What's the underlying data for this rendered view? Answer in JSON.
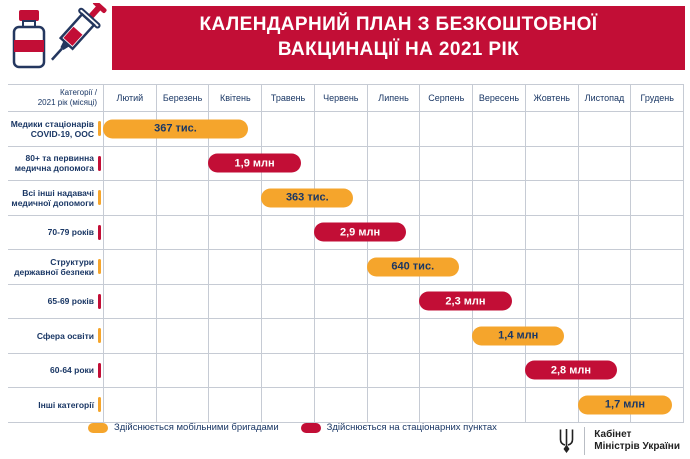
{
  "header": {
    "title_line1": "КАЛЕНДАРНИЙ ПЛАН З БЕЗКОШТОВНОЇ",
    "title_line2": "ВАКЦИНАЦІЇ НА 2021 РІК"
  },
  "table": {
    "corner_line1": "Категорії /",
    "corner_line2": "2021 рік (місяці)"
  },
  "legend": [
    {
      "label": "Здійснюється мобільними бригадами",
      "type": "mobile",
      "color": "#F5A52C"
    },
    {
      "label": "Здійснюється на стаціонарних пунктах",
      "type": "stationary",
      "color": "#C20E36"
    }
  ],
  "footer": {
    "org_line1": "Кабінет",
    "org_line2": "Міністрів України"
  },
  "colors": {
    "banner_red": "#C20E36",
    "bar_orange": "#F5A52C",
    "text_navy": "#1A3765",
    "grid_line": "#C6CBD4"
  },
  "chart_data": {
    "type": "bar",
    "subtype": "horizontal-gantt-timeline",
    "title": "КАЛЕНДАРНИЙ ПЛАН З БЕЗКОШТОВНОЇ ВАКЦИНАЦІЇ НА 2021 РІК",
    "x_categories_months": [
      "Лютий",
      "Березень",
      "Квітень",
      "Травень",
      "Червень",
      "Липень",
      "Серпень",
      "Вересень",
      "Жовтень",
      "Листопад",
      "Грудень"
    ],
    "legend_position": "bottom",
    "grid": true,
    "rows": [
      {
        "category": "Медики стаціонарів COVID-19, ООС",
        "value_label": "367 тис.",
        "type": "mobile",
        "start_month": "Лютий",
        "end_month": "Квітень",
        "start": 0,
        "span": 2.75
      },
      {
        "category": "80+ та первинна медична допомога",
        "value_label": "1,9 млн",
        "type": "stationary",
        "start_month": "Квітень",
        "end_month": "Травень",
        "start": 2,
        "span": 1.75
      },
      {
        "category": "Всі інші надавачі медичної допомоги",
        "value_label": "363 тис.",
        "type": "mobile",
        "start_month": "Травень",
        "end_month": "Червень",
        "start": 3,
        "span": 1.75
      },
      {
        "category": "70-79 років",
        "value_label": "2,9 млн",
        "type": "stationary",
        "start_month": "Червень",
        "end_month": "Липень",
        "start": 4,
        "span": 1.75
      },
      {
        "category": "Структури державної безпеки",
        "value_label": "640 тис.",
        "type": "mobile",
        "start_month": "Липень",
        "end_month": "Серпень",
        "start": 5,
        "span": 1.75
      },
      {
        "category": "65-69 років",
        "value_label": "2,3 млн",
        "type": "stationary",
        "start_month": "Серпень",
        "end_month": "Вересень",
        "start": 6,
        "span": 1.75
      },
      {
        "category": "Сфера освіти",
        "value_label": "1,4 млн",
        "type": "mobile",
        "start_month": "Вересень",
        "end_month": "Жовтень",
        "start": 7,
        "span": 1.75
      },
      {
        "category": "60-64 роки",
        "value_label": "2,8 млн",
        "type": "stationary",
        "start_month": "Жовтень",
        "end_month": "Листопад",
        "start": 8,
        "span": 1.75
      },
      {
        "category": "Інші категорії",
        "value_label": "1,7 млн",
        "type": "mobile",
        "start_month": "Листопад",
        "end_month": "Грудень",
        "start": 9,
        "span": 1.8
      }
    ]
  }
}
